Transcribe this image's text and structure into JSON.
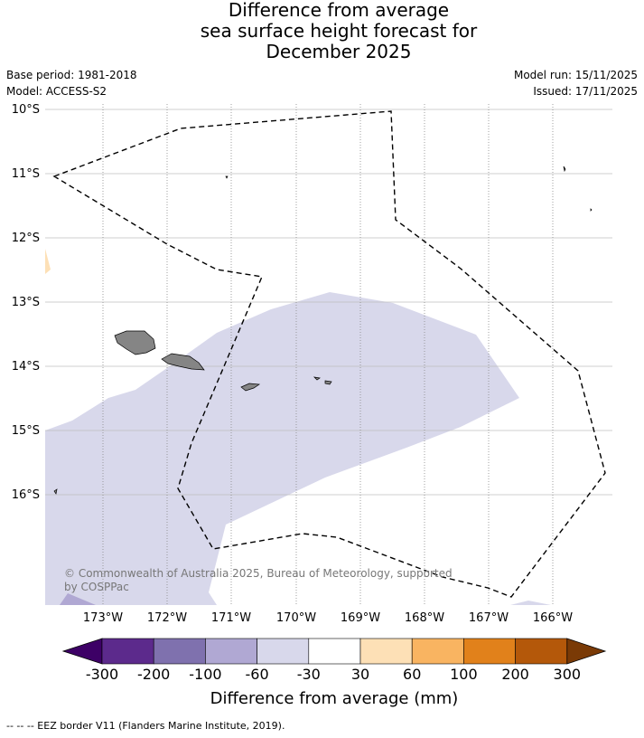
{
  "title": {
    "line1": "Difference from average",
    "line2": "sea surface height forecast for",
    "line3": "December 2025"
  },
  "meta": {
    "base_period": "Base period: 1981-2018",
    "model": "Model: ACCESS-S2",
    "model_run": "Model run: 15/11/2025",
    "issued": "Issued: 17/11/2025"
  },
  "map": {
    "lat_labels": [
      "10°S",
      "11°S",
      "12°S",
      "13°S",
      "14°S",
      "15°S",
      "16°S"
    ],
    "lon_labels": [
      "173°W",
      "172°W",
      "171°W",
      "170°W",
      "169°W",
      "168°W",
      "167°W",
      "166°W"
    ],
    "copyright_line1": "© Commonwealth of Australia 2025, Bureau of Meteorology, supported",
    "copyright_line2": "by COSPPac"
  },
  "colorbar": {
    "ticks": [
      "-300",
      "-200",
      "-100",
      "-60",
      "-30",
      "30",
      "60",
      "100",
      "200",
      "300"
    ],
    "colors": [
      "#3d0066",
      "#5c2a8c",
      "#7f71ae",
      "#b0a8d3",
      "#d8d8eb",
      "#ffffff",
      "#fde0b6",
      "#f9b461",
      "#e1811b",
      "#b4580a",
      "#7a3a06"
    ],
    "label": "Difference from average (mm)"
  },
  "legend": {
    "eez_text": "-- -- -- EEZ border V11 (Flanders Marine Institute, 2019)."
  }
}
